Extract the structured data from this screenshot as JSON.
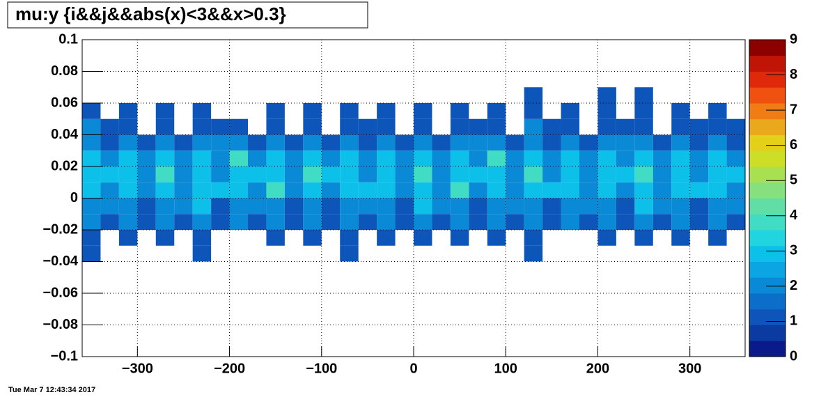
{
  "chart_data": {
    "type": "heatmap",
    "title": "mu:y {i&&j&&abs(x)<3&&x>0.3}",
    "footer": "Tue Mar  7 12:43:34 2017",
    "xlim": [
      -360,
      360
    ],
    "xticks": [
      {
        "value": -300,
        "label": "−300"
      },
      {
        "value": -200,
        "label": "−200"
      },
      {
        "value": -100,
        "label": "−100"
      },
      0,
      100,
      200,
      300
    ],
    "ylim": [
      -0.1,
      0.1
    ],
    "yticks": [
      {
        "value": -0.1,
        "label": "−0.1"
      },
      {
        "value": -0.08,
        "label": "−0.08"
      },
      {
        "value": -0.06,
        "label": "−0.06"
      },
      {
        "value": -0.04,
        "label": "−0.04"
      },
      {
        "value": -0.02,
        "label": "−0.02"
      },
      0,
      0.02,
      0.04,
      0.06,
      0.08,
      0.1
    ],
    "zlim": [
      0,
      9
    ],
    "zticks": [
      0,
      1,
      2,
      3,
      4,
      5,
      6,
      7,
      8,
      9
    ],
    "grid": true,
    "palette": [
      "#0a1a8a",
      "#0b3aa0",
      "#0d55b8",
      "#0b6fca",
      "#0a8ad6",
      "#0aa5e2",
      "#0cc0ea",
      "#20d4e0",
      "#40dcc4",
      "#60dea6",
      "#86e07e",
      "#a8e052",
      "#ccdf26",
      "#e4d018",
      "#eaa81c",
      "#f07c16",
      "#f05010",
      "#e0280a",
      "#c01407",
      "#8c0000"
    ],
    "xbins": [
      -360,
      -340,
      -320,
      -300,
      -280,
      -260,
      -240,
      -220,
      -200,
      -180,
      -160,
      -140,
      -120,
      -100,
      -80,
      -60,
      -40,
      -20,
      0,
      20,
      40,
      60,
      80,
      100,
      120,
      140,
      160,
      180,
      200,
      220,
      240,
      260,
      280,
      300,
      320,
      340,
      360
    ],
    "ybins": [
      -0.1,
      -0.09,
      -0.08,
      -0.07,
      -0.06,
      -0.05,
      -0.04,
      -0.03,
      -0.02,
      -0.01,
      0,
      0.01,
      0.02,
      0.03,
      0.04,
      0.05,
      0.06,
      0.07,
      0.08,
      0.09,
      0.1
    ],
    "z": [
      [
        0,
        0,
        0,
        0,
        0,
        0,
        0,
        0,
        0,
        0,
        0,
        0,
        0,
        0,
        0,
        0,
        0,
        0,
        0,
        0,
        0,
        0,
        0,
        0,
        0,
        0,
        0,
        0,
        0,
        0,
        0,
        0,
        0,
        0,
        0,
        0
      ],
      [
        0,
        0,
        0,
        0,
        0,
        0,
        0,
        0,
        0,
        0,
        0,
        0,
        0,
        0,
        0,
        0,
        0,
        0,
        0,
        0,
        0,
        0,
        0,
        0,
        0,
        0,
        0,
        0,
        0,
        0,
        0,
        0,
        0,
        0,
        0,
        0
      ],
      [
        0,
        0,
        0,
        0,
        0,
        0,
        0,
        0,
        0,
        0,
        0,
        0,
        0,
        0,
        0,
        0,
        0,
        0,
        0,
        0,
        0,
        0,
        0,
        0,
        0,
        0,
        0,
        0,
        0,
        0,
        0,
        0,
        0,
        0,
        0,
        0
      ],
      [
        0,
        0,
        0,
        0,
        0,
        0,
        0,
        0,
        0,
        0,
        0,
        0,
        0,
        0,
        0,
        0,
        0,
        0,
        0,
        0,
        0,
        0,
        0,
        0,
        0,
        0,
        0,
        0,
        0,
        0,
        0,
        0,
        0,
        0,
        0,
        0
      ],
      [
        0,
        0,
        0,
        0,
        0,
        0,
        0,
        0,
        0,
        0,
        0,
        0,
        0,
        0,
        0,
        0,
        0,
        0,
        0,
        0,
        0,
        0,
        0,
        0,
        0,
        0,
        0,
        0,
        0,
        0,
        0,
        0,
        0,
        0,
        0,
        0
      ],
      [
        0,
        0,
        0,
        0,
        0,
        0,
        0,
        0,
        0,
        0,
        0,
        0,
        0,
        0,
        0,
        0,
        0,
        0,
        0,
        0,
        0,
        0,
        0,
        0,
        0,
        0,
        0,
        0,
        0,
        0,
        0,
        0,
        0,
        0,
        0,
        0
      ],
      [
        1,
        0,
        0,
        0,
        0,
        0,
        1,
        0,
        0,
        0,
        0,
        0,
        0,
        0,
        1,
        0,
        0,
        0,
        0,
        0,
        0,
        0,
        0,
        0,
        1,
        0,
        0,
        0,
        0,
        0,
        0,
        0,
        0,
        0,
        0,
        0
      ],
      [
        1,
        0,
        1,
        0,
        1,
        0,
        1,
        0,
        0,
        0,
        1,
        0,
        1,
        0,
        1,
        0,
        1,
        0,
        1,
        0,
        1,
        0,
        1,
        0,
        1,
        0,
        0,
        0,
        1,
        0,
        1,
        0,
        1,
        0,
        1,
        0
      ],
      [
        2,
        1,
        2,
        1,
        2,
        1,
        2,
        1,
        2,
        1,
        2,
        1,
        2,
        1,
        2,
        1,
        2,
        1,
        2,
        1,
        2,
        1,
        2,
        1,
        2,
        1,
        2,
        1,
        2,
        1,
        2,
        1,
        2,
        1,
        2,
        1
      ],
      [
        2,
        2,
        2,
        1,
        2,
        2,
        3,
        1,
        2,
        2,
        2,
        1,
        2,
        1,
        2,
        2,
        2,
        1,
        3,
        2,
        2,
        1,
        2,
        2,
        2,
        1,
        2,
        2,
        2,
        1,
        3,
        2,
        2,
        1,
        2,
        2
      ],
      [
        3,
        2,
        3,
        2,
        3,
        2,
        3,
        3,
        3,
        2,
        4,
        2,
        3,
        2,
        3,
        3,
        3,
        2,
        3,
        2,
        4,
        2,
        3,
        2,
        3,
        3,
        3,
        2,
        3,
        2,
        3,
        2,
        3,
        3,
        3,
        2
      ],
      [
        3,
        3,
        3,
        2,
        4,
        2,
        3,
        2,
        3,
        3,
        3,
        2,
        4,
        3,
        3,
        2,
        3,
        2,
        4,
        2,
        3,
        3,
        3,
        2,
        4,
        2,
        3,
        2,
        3,
        3,
        4,
        2,
        3,
        2,
        3,
        3
      ],
      [
        3,
        2,
        3,
        2,
        3,
        2,
        3,
        2,
        4,
        2,
        3,
        2,
        3,
        2,
        3,
        2,
        3,
        2,
        3,
        2,
        3,
        2,
        4,
        2,
        3,
        2,
        3,
        2,
        3,
        2,
        3,
        2,
        3,
        2,
        3,
        2
      ],
      [
        2,
        1,
        2,
        1,
        2,
        1,
        2,
        2,
        2,
        1,
        2,
        1,
        2,
        1,
        2,
        1,
        2,
        1,
        2,
        1,
        2,
        2,
        2,
        1,
        2,
        1,
        2,
        1,
        2,
        2,
        2,
        1,
        2,
        1,
        2,
        1
      ],
      [
        2,
        1,
        1,
        0,
        1,
        0,
        1,
        1,
        1,
        0,
        1,
        0,
        1,
        0,
        1,
        1,
        1,
        0,
        1,
        0,
        1,
        1,
        1,
        0,
        2,
        1,
        1,
        0,
        1,
        1,
        1,
        0,
        1,
        1,
        1,
        1
      ],
      [
        1,
        0,
        1,
        0,
        1,
        0,
        1,
        0,
        0,
        0,
        1,
        0,
        1,
        0,
        1,
        0,
        1,
        0,
        1,
        0,
        1,
        0,
        1,
        0,
        1,
        0,
        1,
        0,
        1,
        0,
        1,
        0,
        1,
        0,
        1,
        0
      ],
      [
        0,
        0,
        0,
        0,
        0,
        0,
        0,
        0,
        0,
        0,
        0,
        0,
        0,
        0,
        0,
        0,
        0,
        0,
        0,
        0,
        0,
        0,
        0,
        0,
        1,
        0,
        0,
        0,
        1,
        0,
        1,
        0,
        0,
        0,
        0,
        0
      ],
      [
        0,
        0,
        0,
        0,
        0,
        0,
        0,
        0,
        0,
        0,
        0,
        0,
        0,
        0,
        0,
        0,
        0,
        0,
        0,
        0,
        0,
        0,
        0,
        0,
        0,
        0,
        0,
        0,
        0,
        0,
        0,
        0,
        0,
        0,
        0,
        0
      ],
      [
        0,
        0,
        0,
        0,
        0,
        0,
        0,
        0,
        0,
        0,
        0,
        0,
        0,
        0,
        0,
        0,
        0,
        0,
        0,
        0,
        0,
        0,
        0,
        0,
        0,
        0,
        0,
        0,
        0,
        0,
        0,
        0,
        0,
        0,
        0,
        0
      ],
      [
        0,
        0,
        0,
        0,
        0,
        0,
        0,
        0,
        0,
        0,
        0,
        0,
        0,
        0,
        0,
        0,
        0,
        0,
        0,
        0,
        0,
        0,
        0,
        0,
        0,
        0,
        0,
        0,
        0,
        0,
        0,
        0,
        0,
        0,
        0,
        0
      ]
    ]
  }
}
